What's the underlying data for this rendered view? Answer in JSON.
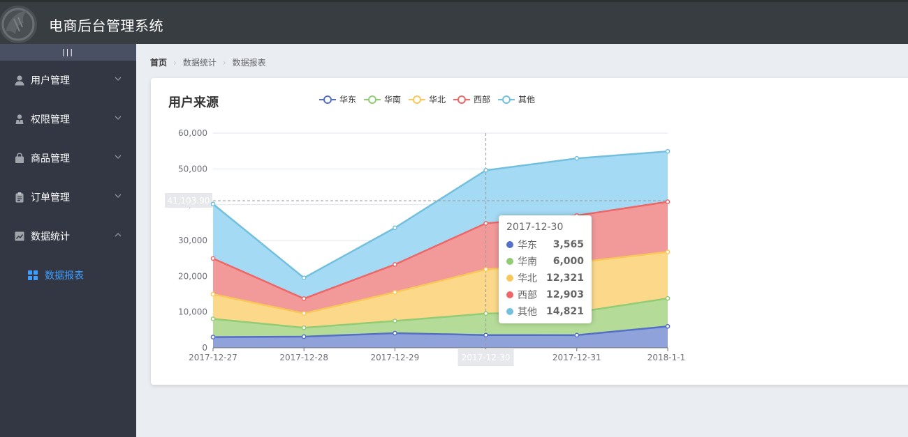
{
  "header": {
    "title": "电商后台管理系统"
  },
  "sidebar": {
    "toggle": "|||",
    "items": [
      {
        "label": "用户管理",
        "icon": "user-icon"
      },
      {
        "label": "权限管理",
        "icon": "permission-icon"
      },
      {
        "label": "商品管理",
        "icon": "shopping-bag-icon"
      },
      {
        "label": "订单管理",
        "icon": "clipboard-icon"
      },
      {
        "label": "数据统计",
        "icon": "chart-icon"
      }
    ],
    "submenu": {
      "label": "数据报表",
      "icon": "grid-icon"
    }
  },
  "breadcrumb": {
    "home": "首页",
    "level1": "数据统计",
    "level2": "数据报表"
  },
  "colors": {
    "sidebar_active": "#409eff",
    "series": [
      "#5470c6",
      "#91cc75",
      "#fac858",
      "#ee6666",
      "#73c0de"
    ],
    "fills": [
      "#8fa2d9",
      "#b4dc98",
      "#fcd98a",
      "#f29a9a",
      "#a5daf4"
    ]
  },
  "chart_data": {
    "type": "area",
    "stacked": true,
    "title": "用户来源",
    "categories": [
      "2017-12-27",
      "2017-12-28",
      "2017-12-29",
      "2017-12-30",
      "2017-12-31",
      "2018-1-1"
    ],
    "y_ticks": [
      "0",
      "10,000",
      "20,000",
      "30,000",
      "40,000",
      "50,000",
      "60,000"
    ],
    "ylim": [
      0,
      60000
    ],
    "legend_position": "top",
    "series": [
      {
        "name": "华东",
        "values": [
          2999,
          3111,
          4100,
          3565,
          3528,
          6000
        ]
      },
      {
        "name": "华南",
        "values": [
          5090,
          2500,
          3400,
          6000,
          6400,
          7800
        ]
      },
      {
        "name": "华北",
        "values": [
          6888,
          4000,
          8010,
          12321,
          13928,
          12984
        ]
      },
      {
        "name": "西部",
        "values": [
          9991,
          4130,
          7777,
          12903,
          13098,
          14028
        ]
      },
      {
        "name": "其他",
        "values": [
          15212,
          5800,
          10241,
          14821,
          15982,
          14091
        ]
      }
    ],
    "axis_pointer": {
      "x_label": "2017-12-30",
      "y_label": "41,103.90",
      "y_value": 41103.9
    },
    "tooltip": {
      "date": "2017-12-30",
      "rows": [
        {
          "name": "华东",
          "value": "3,565"
        },
        {
          "name": "华南",
          "value": "6,000"
        },
        {
          "name": "华北",
          "value": "12,321"
        },
        {
          "name": "西部",
          "value": "12,903"
        },
        {
          "name": "其他",
          "value": "14,821"
        }
      ]
    }
  }
}
